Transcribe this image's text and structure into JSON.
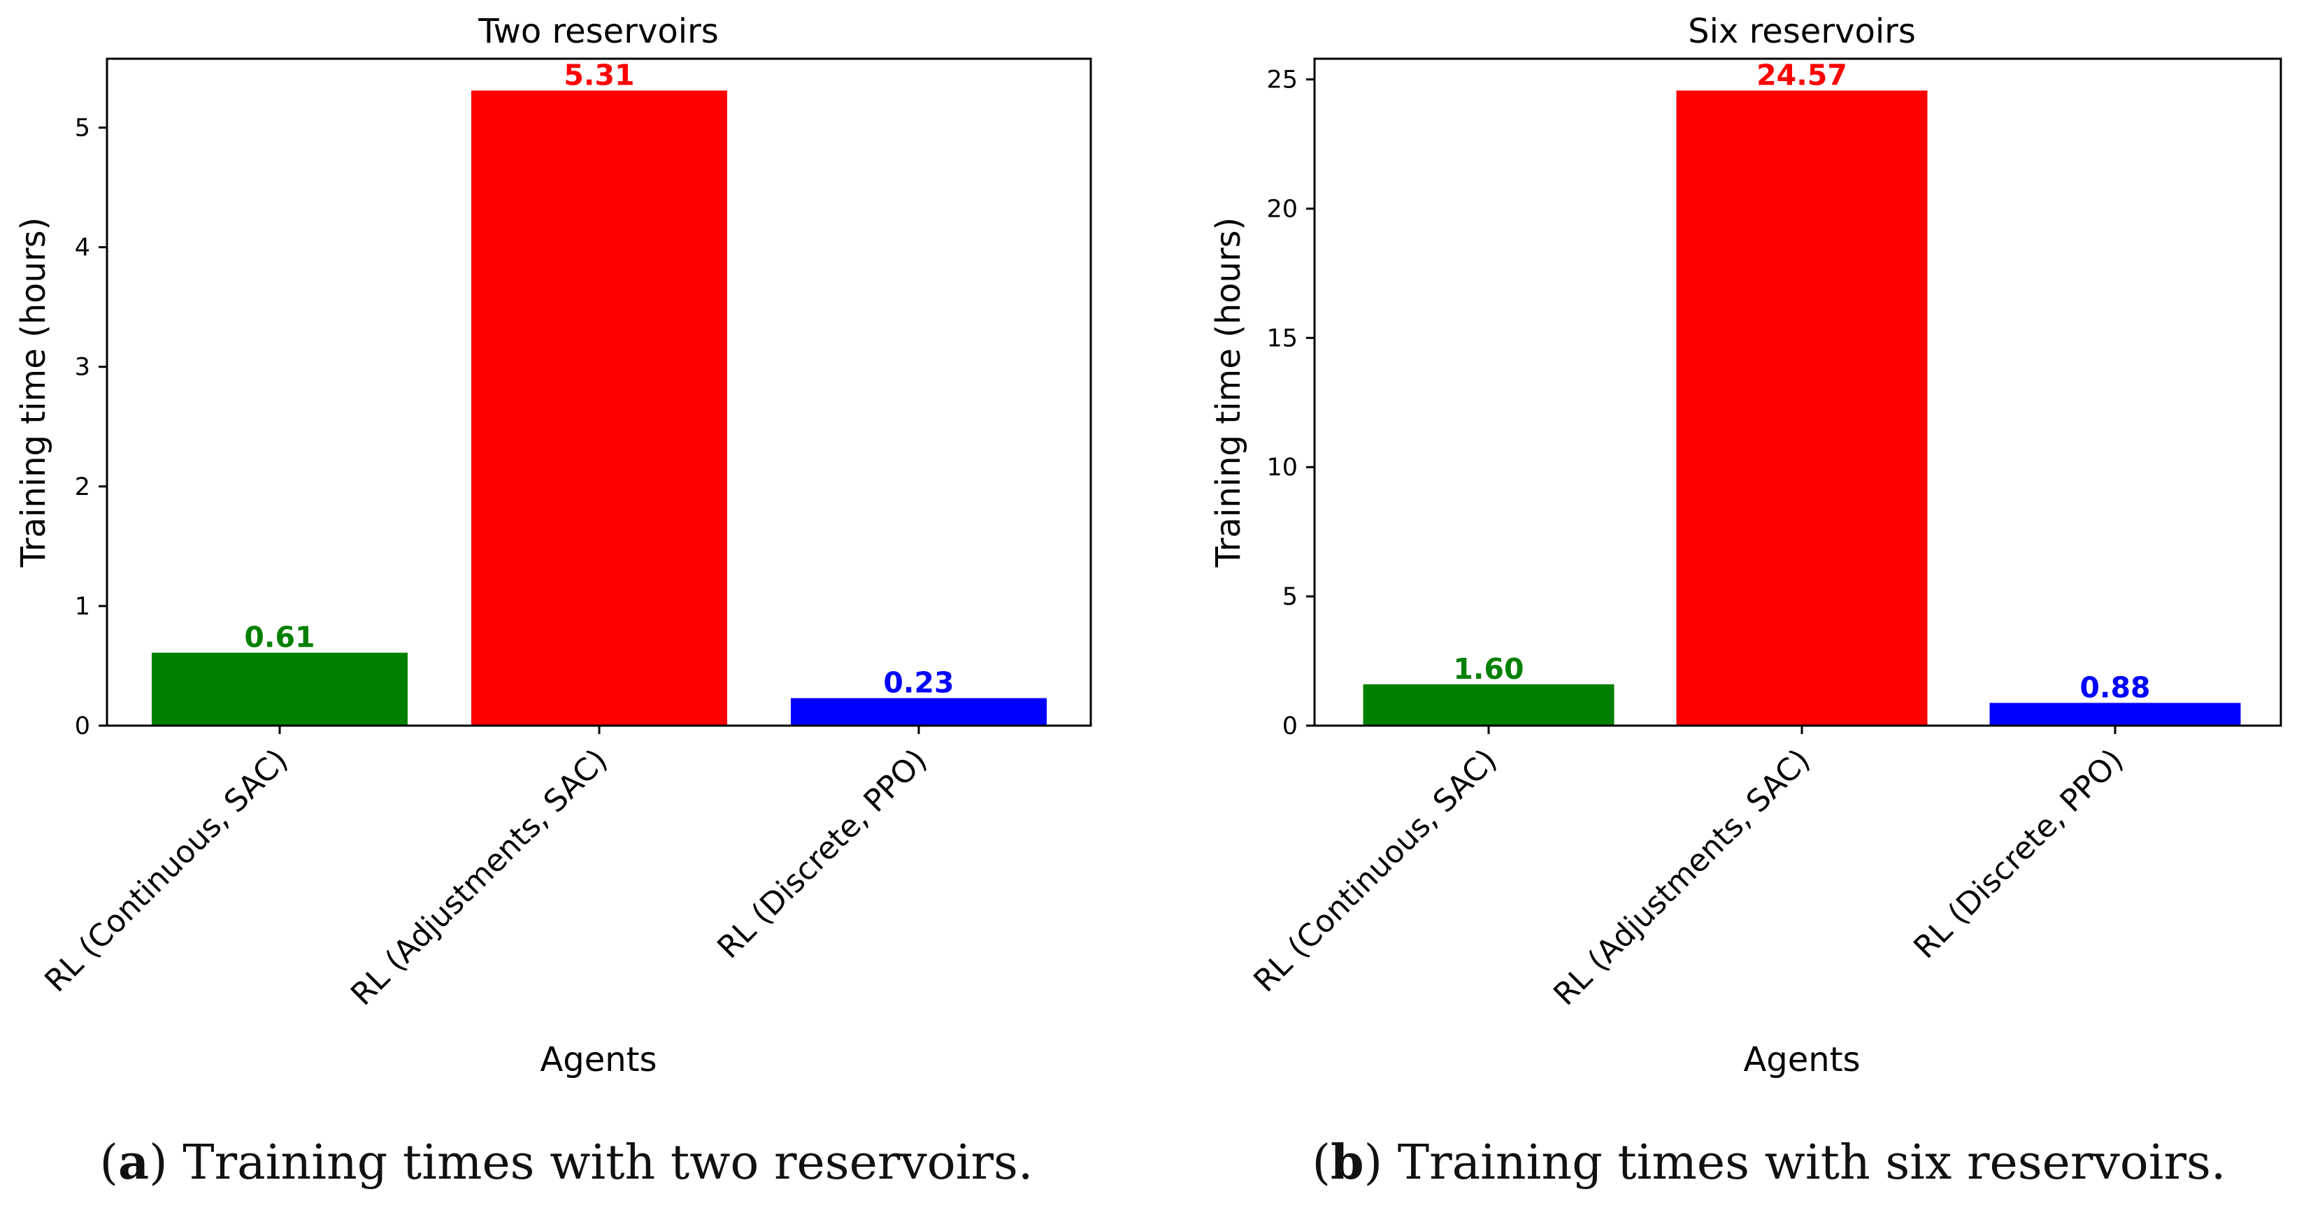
{
  "chart_data": [
    {
      "type": "bar",
      "title": "Two reservoirs",
      "xlabel": "Agents",
      "ylabel": "Training time (hours)",
      "categories": [
        "RL (Continuous, SAC)",
        "RL (Adjustments, SAC)",
        "RL (Discrete, PPO)"
      ],
      "values": [
        0.61,
        5.31,
        0.23
      ],
      "value_labels": [
        "0.61",
        "5.31",
        "0.23"
      ],
      "colors": [
        "#008000",
        "#ff0000",
        "#0000ff"
      ],
      "ylim": [
        0,
        5.576
      ],
      "yticks": [
        0,
        1,
        2,
        3,
        4,
        5
      ],
      "grid": false,
      "legend": "none"
    },
    {
      "type": "bar",
      "title": "Six reservoirs",
      "xlabel": "Agents",
      "ylabel": "Training time (hours)",
      "categories": [
        "RL (Continuous, SAC)",
        "RL (Adjustments, SAC)",
        "RL (Discrete, PPO)"
      ],
      "values": [
        1.6,
        24.57,
        0.88
      ],
      "value_labels": [
        "1.60",
        "24.57",
        "0.88"
      ],
      "colors": [
        "#008000",
        "#ff0000",
        "#0000ff"
      ],
      "ylim": [
        0,
        25.8
      ],
      "yticks": [
        0,
        5,
        10,
        15,
        20,
        25
      ],
      "grid": false,
      "legend": "none"
    }
  ],
  "captions": [
    {
      "letter": "a",
      "text": ") Training times with two reservoirs."
    },
    {
      "letter": "b",
      "text": ") Training times with six reservoirs."
    }
  ]
}
